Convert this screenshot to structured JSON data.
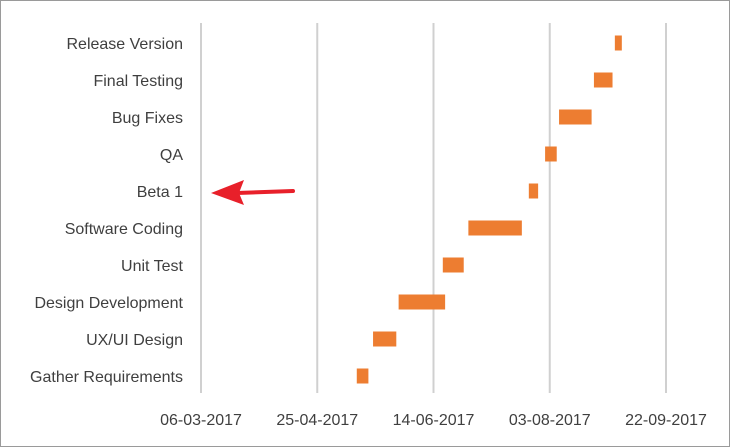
{
  "chart_data": {
    "type": "bar",
    "orientation": "horizontal",
    "title": "",
    "xlabel": "",
    "ylabel": "",
    "xlim": [
      "2017-03-06",
      "2017-09-22"
    ],
    "x_ticks": [
      "06-03-2017",
      "25-04-2017",
      "14-06-2017",
      "03-08-2017",
      "22-09-2017"
    ],
    "grid": "vertical",
    "legend": "none",
    "bar_color": "#ED7D31",
    "gridline_color": "#d0d0d0",
    "arrow_color": "#e8202a",
    "annotation": {
      "type": "arrow",
      "points_to": "Beta 1"
    },
    "tasks": [
      {
        "name": "Gather Requirements",
        "start": "2017-05-12",
        "end": "2017-05-17"
      },
      {
        "name": "UX/UI Design",
        "start": "2017-05-19",
        "end": "2017-05-29"
      },
      {
        "name": "Design Development",
        "start": "2017-05-30",
        "end": "2017-06-19"
      },
      {
        "name": "Unit Test",
        "start": "2017-06-18",
        "end": "2017-06-27"
      },
      {
        "name": "Software Coding",
        "start": "2017-06-29",
        "end": "2017-07-22"
      },
      {
        "name": "Beta 1",
        "start": "2017-07-25",
        "end": "2017-07-29"
      },
      {
        "name": "QA",
        "start": "2017-08-01",
        "end": "2017-08-06"
      },
      {
        "name": "Bug Fixes",
        "start": "2017-08-07",
        "end": "2017-08-21"
      },
      {
        "name": "Final Testing",
        "start": "2017-08-22",
        "end": "2017-08-30"
      },
      {
        "name": "Release Version",
        "start": "2017-08-31",
        "end": "2017-09-03"
      }
    ]
  }
}
